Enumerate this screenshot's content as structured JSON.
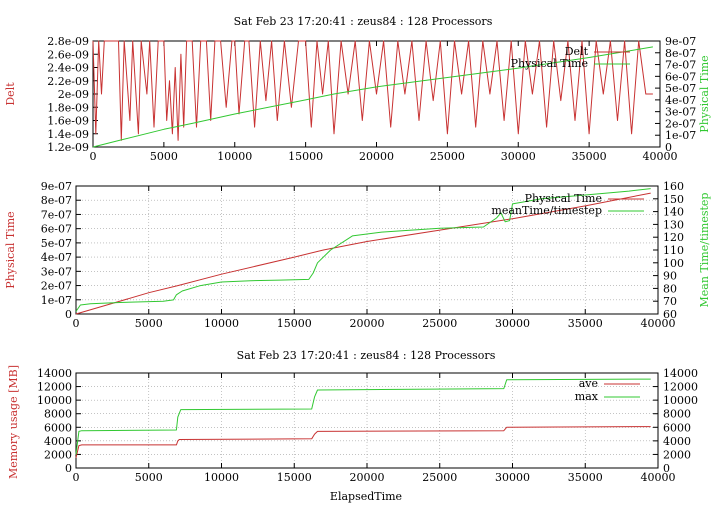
{
  "chart_data": [
    {
      "type": "line",
      "title": "Sat Feb 23 17:20:41 : zeus84 : 128 Processors",
      "xlabel": "",
      "ylabel": "Delt",
      "y2label": "Physical Time",
      "xlim": [
        0,
        40000
      ],
      "ylim": [
        1.2e-09,
        2.8e-09
      ],
      "y2lim": [
        0,
        9e-07
      ],
      "xticks": [
        0,
        5000,
        10000,
        15000,
        20000,
        25000,
        30000,
        35000,
        40000
      ],
      "xtick_labels": [
        "0",
        "5000",
        "10000",
        "15000",
        "20000",
        "25000",
        "30000",
        "35000",
        "40000"
      ],
      "yticks": [
        1.2e-09,
        1.4e-09,
        1.6e-09,
        1.8e-09,
        2e-09,
        2.2e-09,
        2.4e-09,
        2.6e-09,
        2.8e-09
      ],
      "ytick_labels": [
        "1.2e-09",
        "1.4e-09",
        "1.6e-09",
        "1.8e-09",
        "2e-09",
        "2.2e-09",
        "2.4e-09",
        "2.6e-09",
        "2.8e-09"
      ],
      "y2ticks": [
        0,
        1e-07,
        2e-07,
        3e-07,
        4e-07,
        5e-07,
        6e-07,
        7e-07,
        8e-07,
        9e-07
      ],
      "y2tick_labels": [
        "0",
        "1e-07",
        "2e-07",
        "3e-07",
        "4e-07",
        "5e-07",
        "6e-07",
        "7e-07",
        "8e-07",
        "9e-07"
      ],
      "grid": false,
      "legend": "top-right",
      "series": [
        {
          "name": "Delt",
          "axis": "y",
          "color": "#c83232",
          "x": [
            0,
            200,
            400,
            600,
            800,
            1000,
            1400,
            1800,
            2000,
            2200,
            2600,
            2800,
            3200,
            3400,
            3800,
            4000,
            4300,
            4600,
            5000,
            5200,
            5400,
            5600,
            5800,
            6000,
            6200,
            6400,
            6600,
            7000,
            7300,
            7600,
            8000,
            8300,
            8600,
            9000,
            9400,
            9800,
            10000,
            10300,
            10700,
            11000,
            11400,
            11800,
            12200,
            12600,
            13000,
            13500,
            14000,
            14500,
            15000,
            15400,
            15800,
            16200,
            16600,
            17000,
            17500,
            18000,
            18500,
            19000,
            19500,
            20000,
            20500,
            21000,
            21500,
            22000,
            22500,
            23000,
            23500,
            24000,
            24500,
            25000,
            25500,
            26000,
            26500,
            27000,
            27500,
            28000,
            28500,
            29000,
            29500,
            30000,
            30500,
            31000,
            31500,
            32000,
            32500,
            33000,
            33500,
            34000,
            34500,
            35000,
            35500,
            36000,
            36500,
            37000,
            37500,
            38000,
            38500,
            39000,
            39500
          ],
          "values": [
            2.8e-09,
            1.4e-09,
            2.8e-09,
            2e-09,
            2.8e-09,
            2.8e-09,
            2.8e-09,
            2.8e-09,
            1.3e-09,
            2.8e-09,
            1.6e-09,
            2.8e-09,
            1.4e-09,
            2.8e-09,
            2e-09,
            2.8e-09,
            1.5e-09,
            2.8e-09,
            2.8e-09,
            1.6e-09,
            2.2e-09,
            1.4e-09,
            2.4e-09,
            1.3e-09,
            2.6e-09,
            1.5e-09,
            2.8e-09,
            2.8e-09,
            1.5e-09,
            2.8e-09,
            2.8e-09,
            1.6e-09,
            2.8e-09,
            2.8e-09,
            1.8e-09,
            2.8e-09,
            2.8e-09,
            1.7e-09,
            2.8e-09,
            2.8e-09,
            1.5e-09,
            2.8e-09,
            1.9e-09,
            2.8e-09,
            1.6e-09,
            2.8e-09,
            1.8e-09,
            2.8e-09,
            2.8e-09,
            1.5e-09,
            2.8e-09,
            2e-09,
            2.8e-09,
            1.4e-09,
            2.8e-09,
            2e-09,
            2.8e-09,
            1.6e-09,
            2.8e-09,
            2e-09,
            2.8e-09,
            1.5e-09,
            2.8e-09,
            2e-09,
            2.8e-09,
            1.6e-09,
            2.8e-09,
            1.9e-09,
            2.8e-09,
            1.4e-09,
            2.8e-09,
            2e-09,
            2.8e-09,
            1.5e-09,
            2.8e-09,
            2e-09,
            2.8e-09,
            1.6e-09,
            2.8e-09,
            1.4e-09,
            2.8e-09,
            2e-09,
            2.8e-09,
            1.5e-09,
            2.8e-09,
            1.9e-09,
            2.8e-09,
            1.6e-09,
            2.8e-09,
            1.4e-09,
            2.8e-09,
            2e-09,
            2.8e-09,
            1.6e-09,
            2.8e-09,
            1.4e-09,
            2.8e-09,
            2e-09,
            2e-09
          ]
        },
        {
          "name": "Physical Time",
          "axis": "y2",
          "color": "#32c832",
          "x": [
            0,
            2000,
            5000,
            7000,
            10000,
            15000,
            17000,
            20000,
            25000,
            30000,
            35000,
            39500
          ],
          "values": [
            0,
            6e-08,
            1.5e-07,
            2e-07,
            2.8e-07,
            4e-07,
            4.5e-07,
            5.1e-07,
            5.9e-07,
            6.7e-07,
            7.6e-07,
            8.5e-07
          ]
        }
      ]
    },
    {
      "type": "line",
      "title": "",
      "xlabel": "",
      "ylabel": "Physical Time",
      "y2label": "Mean Time/timestep",
      "xlim": [
        0,
        40000
      ],
      "ylim": [
        0,
        9e-07
      ],
      "y2lim": [
        60,
        160
      ],
      "xticks": [
        0,
        5000,
        10000,
        15000,
        20000,
        25000,
        30000,
        35000,
        40000
      ],
      "xtick_labels": [
        "0",
        "5000",
        "10000",
        "15000",
        "20000",
        "25000",
        "30000",
        "35000",
        "40000"
      ],
      "yticks": [
        0,
        1e-07,
        2e-07,
        3e-07,
        4e-07,
        5e-07,
        6e-07,
        7e-07,
        8e-07,
        9e-07
      ],
      "ytick_labels": [
        "0",
        "1e-07",
        "2e-07",
        "3e-07",
        "4e-07",
        "5e-07",
        "6e-07",
        "7e-07",
        "8e-07",
        "9e-07"
      ],
      "y2ticks": [
        60,
        70,
        80,
        90,
        100,
        110,
        120,
        130,
        140,
        150,
        160
      ],
      "y2tick_labels": [
        "60",
        "70",
        "80",
        "90",
        "100",
        "110",
        "120",
        "130",
        "140",
        "150",
        "160"
      ],
      "grid": true,
      "legend": "top-right",
      "series": [
        {
          "name": "Physical Time",
          "axis": "y",
          "color": "#c83232",
          "x": [
            0,
            2000,
            5000,
            7000,
            10000,
            15000,
            17000,
            20000,
            25000,
            30000,
            35000,
            39500
          ],
          "values": [
            0,
            6e-08,
            1.5e-07,
            2e-07,
            2.8e-07,
            4e-07,
            4.5e-07,
            5.1e-07,
            5.9e-07,
            6.7e-07,
            7.6e-07,
            8.5e-07
          ]
        },
        {
          "name": "meanTime/timestep",
          "axis": "y2",
          "color": "#32c832",
          "x": [
            0,
            300,
            1000,
            3000,
            6000,
            6700,
            6900,
            7300,
            8500,
            10000,
            12000,
            14000,
            16000,
            16300,
            16600,
            17500,
            19000,
            21000,
            25000,
            28000,
            28900,
            29200,
            29500,
            29800,
            30000,
            32000,
            35000,
            38000,
            39500
          ],
          "values": [
            62,
            67,
            68,
            69,
            70,
            71,
            75,
            78,
            82,
            85,
            86,
            86.5,
            87,
            92,
            100,
            110,
            121,
            124,
            127,
            128,
            135,
            139,
            132,
            133,
            146,
            150,
            153,
            156,
            158
          ]
        }
      ]
    },
    {
      "type": "line",
      "title": "Sat Feb 23 17:20:41 : zeus84 : 128 Processors",
      "xlabel": "ElapsedTime",
      "ylabel": "Memory usage [MB]",
      "xlim": [
        0,
        40000
      ],
      "ylim": [
        0,
        14000
      ],
      "y2lim": [
        0,
        14000
      ],
      "xticks": [
        0,
        5000,
        10000,
        15000,
        20000,
        25000,
        30000,
        35000,
        40000
      ],
      "xtick_labels": [
        "0",
        "5000",
        "10000",
        "15000",
        "20000",
        "25000",
        "30000",
        "35000",
        "40000"
      ],
      "yticks": [
        0,
        2000,
        4000,
        6000,
        8000,
        10000,
        12000,
        14000
      ],
      "ytick_labels": [
        "0",
        "2000",
        "4000",
        "6000",
        "8000",
        "10000",
        "12000",
        "14000"
      ],
      "y2ticks": [
        0,
        2000,
        4000,
        6000,
        8000,
        10000,
        12000,
        14000
      ],
      "y2tick_labels": [
        "0",
        "2000",
        "4000",
        "6000",
        "8000",
        "10000",
        "12000",
        "14000"
      ],
      "grid": true,
      "legend": "top-right",
      "series": [
        {
          "name": "ave",
          "axis": "y",
          "color": "#c83232",
          "x": [
            0,
            200,
            400,
            6900,
            7000,
            7100,
            16200,
            16400,
            16600,
            29400,
            29600,
            39500
          ],
          "values": [
            1500,
            3300,
            3400,
            3400,
            4000,
            4200,
            4300,
            5000,
            5400,
            5500,
            6000,
            6100
          ]
        },
        {
          "name": "max",
          "axis": "y",
          "color": "#32c832",
          "x": [
            0,
            200,
            400,
            6900,
            7000,
            7200,
            16200,
            16400,
            16600,
            29400,
            29600,
            39500
          ],
          "values": [
            2000,
            5400,
            5500,
            5600,
            7500,
            8600,
            8700,
            10500,
            11500,
            11700,
            13000,
            13100
          ]
        }
      ]
    }
  ]
}
